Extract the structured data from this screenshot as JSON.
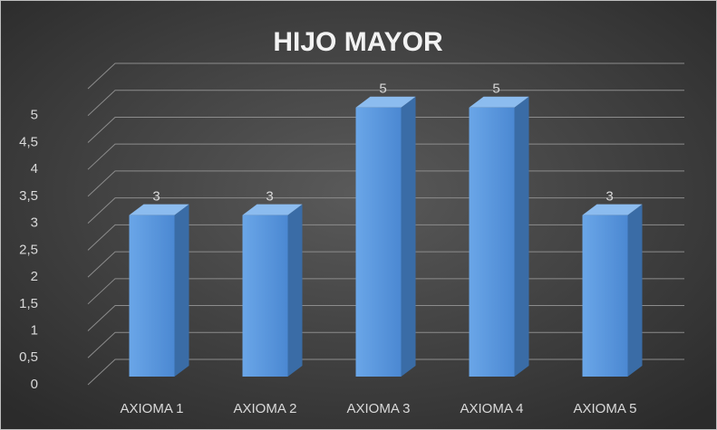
{
  "chart_data": {
    "type": "bar3d",
    "title": "HIJO MAYOR",
    "categories": [
      "AXIOMA 1",
      "AXIOMA 2",
      "AXIOMA 3",
      "AXIOMA 4",
      "AXIOMA 5"
    ],
    "values": [
      3,
      3,
      5,
      5,
      3
    ],
    "color": "#5b9bd5",
    "ylim": [
      0,
      5.5
    ],
    "yticks": [
      0,
      {
        "value": 0.5,
        "label": "0,5"
      },
      1,
      {
        "value": 1.5,
        "label": "1,5"
      },
      2,
      {
        "value": 2.5,
        "label": "2,5"
      },
      3,
      {
        "value": 3.5,
        "label": "3,5"
      },
      4,
      {
        "value": 4.5,
        "label": "4,5"
      },
      5
    ],
    "grid": true
  }
}
